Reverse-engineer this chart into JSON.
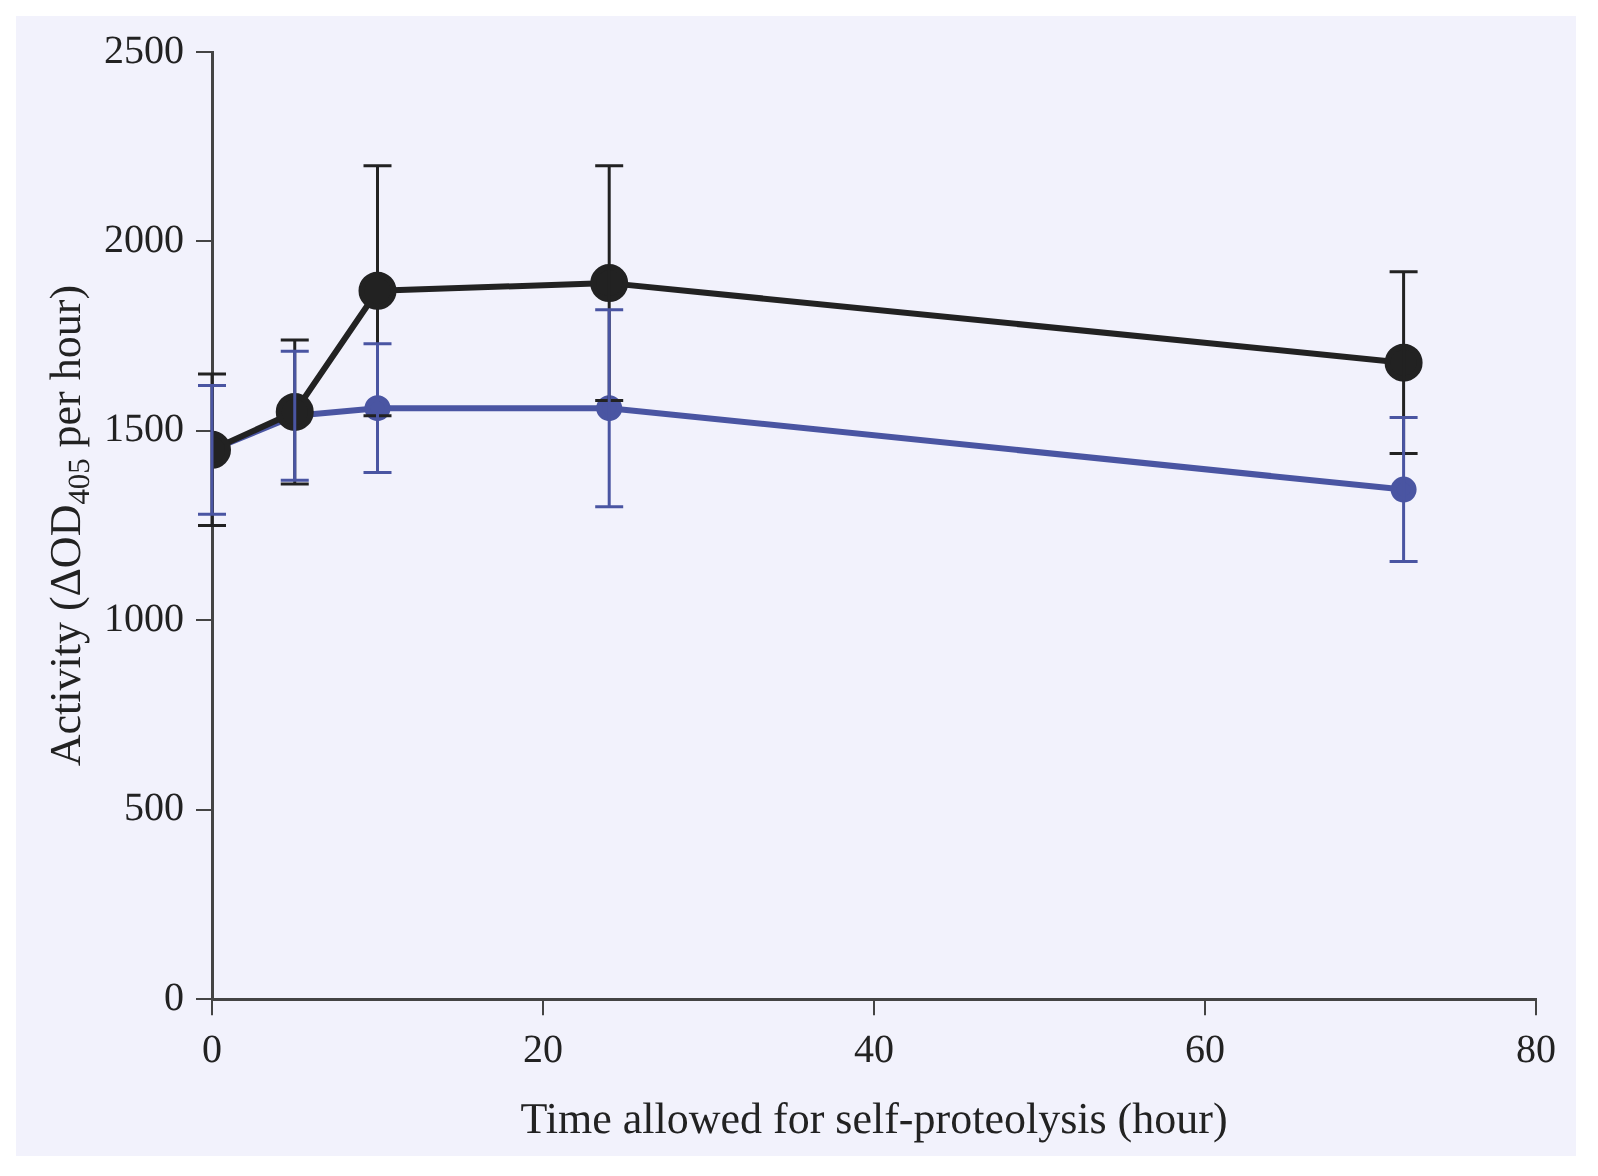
{
  "chart_data": {
    "type": "line",
    "xlabel": "Time allowed for self-proteolysis (hour)",
    "ylabel": "Activity (ΔOD$_{405}$ per hour)",
    "x": [
      0,
      5,
      10,
      24,
      72
    ],
    "xlim": [
      0,
      80
    ],
    "xticks": [
      0,
      20,
      40,
      60,
      80
    ],
    "ylim": [
      0,
      2500
    ],
    "yticks": [
      0,
      500,
      1000,
      1500,
      2000,
      2500
    ],
    "grid": false,
    "legend": false,
    "marker": "circle",
    "line_style": "solid",
    "series": [
      {
        "color": "#222222",
        "values": [
          1450,
          1550,
          1870,
          1890,
          1680
        ],
        "errors": [
          200,
          190,
          330,
          310,
          240
        ]
      },
      {
        "color": "#4a55a2",
        "values": [
          1450,
          1540,
          1560,
          1560,
          1345
        ],
        "errors": [
          170,
          170,
          170,
          260,
          190
        ]
      }
    ]
  }
}
